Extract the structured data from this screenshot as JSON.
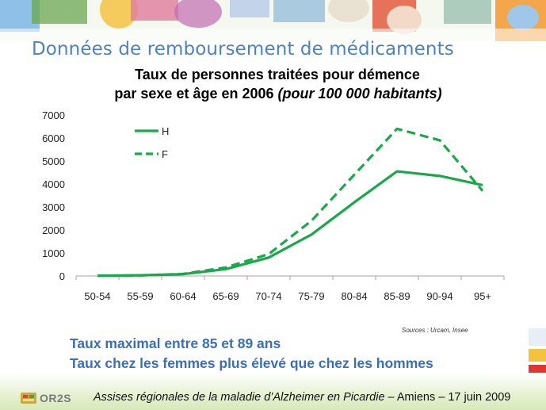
{
  "slide": {
    "title": "Données de remboursement de médicaments",
    "source": "Sources : Urcam, Insee",
    "conclusions": [
      "Taux maximal entre 85 et 89 ans",
      "Taux chez les femmes plus élevé que chez les hommes"
    ],
    "footer": {
      "logo_text": "OR2S",
      "event_italic": "Assises régionales de la maladie d’Alzheimer en Picardie",
      "event_rest": " – Amiens – 17 juin 2009"
    }
  },
  "chart_data": {
    "type": "line",
    "title_line1": "Taux de personnes traitées pour démence",
    "title_line2_plain": "par sexe et âge en 2006 ",
    "title_line2_italic": "(pour 100 000 habitants)",
    "categories": [
      "50-54",
      "55-59",
      "60-64",
      "65-69",
      "70-74",
      "75-79",
      "80-84",
      "85-89",
      "90-94",
      "95+"
    ],
    "series": [
      {
        "name": "H",
        "values": [
          10,
          30,
          80,
          300,
          800,
          1800,
          3200,
          4550,
          4350,
          3950
        ],
        "color": "#1aa84a",
        "dash": "solid"
      },
      {
        "name": "F",
        "values": [
          10,
          25,
          90,
          370,
          950,
          2400,
          4400,
          6400,
          5900,
          3700
        ],
        "color": "#1aa84a",
        "dash": "dashed"
      }
    ],
    "ylim": [
      0,
      7000
    ],
    "yticks": [
      0,
      1000,
      2000,
      3000,
      4000,
      5000,
      6000,
      7000
    ],
    "grid": false,
    "legend": "top-left"
  }
}
